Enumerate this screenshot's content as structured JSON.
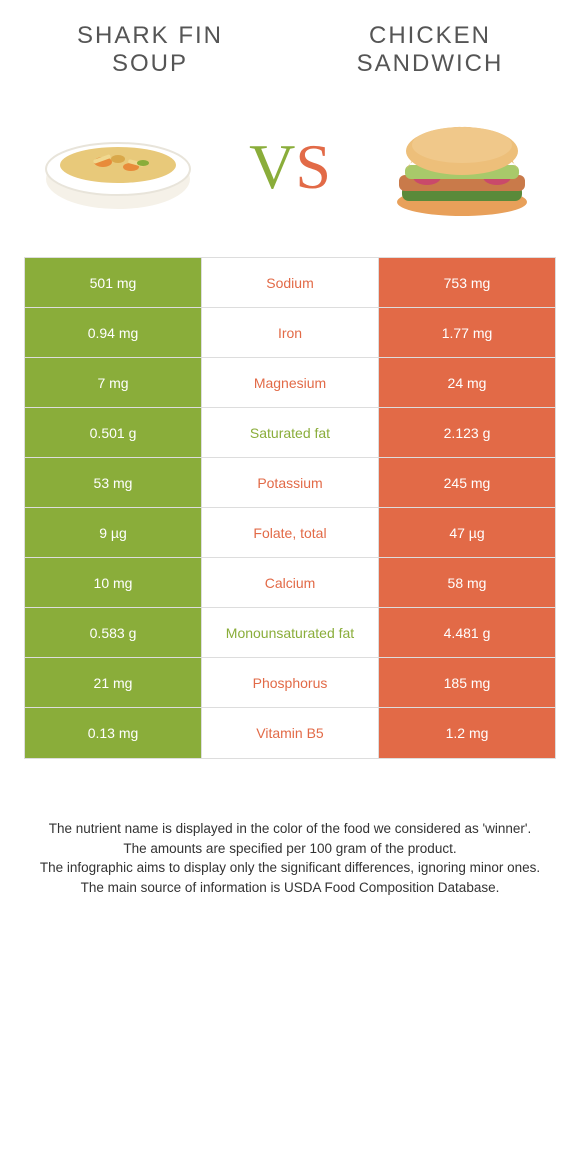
{
  "header": {
    "left_title": "Shark Fin\nSoup",
    "right_title": "Chicken\nSandwich"
  },
  "vs": {
    "v": "V",
    "s": "S"
  },
  "colors": {
    "left": "#8aad3a",
    "right": "#e26a47",
    "border": "#dddddd",
    "text": "#333333"
  },
  "table": {
    "rows": [
      {
        "left": "501 mg",
        "label": "Sodium",
        "right": "753 mg",
        "winner": "right"
      },
      {
        "left": "0.94 mg",
        "label": "Iron",
        "right": "1.77 mg",
        "winner": "right"
      },
      {
        "left": "7 mg",
        "label": "Magnesium",
        "right": "24 mg",
        "winner": "right"
      },
      {
        "left": "0.501 g",
        "label": "Saturated fat",
        "right": "2.123 g",
        "winner": "left"
      },
      {
        "left": "53 mg",
        "label": "Potassium",
        "right": "245 mg",
        "winner": "right"
      },
      {
        "left": "9 µg",
        "label": "Folate, total",
        "right": "47 µg",
        "winner": "right"
      },
      {
        "left": "10 mg",
        "label": "Calcium",
        "right": "58 mg",
        "winner": "right"
      },
      {
        "left": "0.583 g",
        "label": "Monounsaturated fat",
        "right": "4.481 g",
        "winner": "left"
      },
      {
        "left": "21 mg",
        "label": "Phosphorus",
        "right": "185 mg",
        "winner": "right"
      },
      {
        "left": "0.13 mg",
        "label": "Vitamin B5",
        "right": "1.2 mg",
        "winner": "right"
      }
    ]
  },
  "footer": {
    "line1": "The nutrient name is displayed in the color of the food we considered as 'winner'.",
    "line2": "The amounts are specified per 100 gram of the product.",
    "line3": "The infographic aims to display only the significant differences, ignoring minor ones.",
    "line4": "The main source of information is USDA Food Composition Database."
  }
}
